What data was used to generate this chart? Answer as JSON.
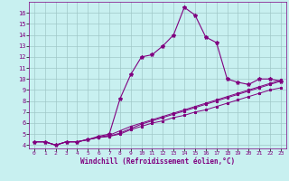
{
  "xlabel": "Windchill (Refroidissement éolien,°C)",
  "bg_color": "#c8f0f0",
  "line_color": "#800080",
  "grid_color": "#a0c8c8",
  "x_ticks": [
    0,
    1,
    2,
    3,
    4,
    5,
    6,
    7,
    8,
    9,
    10,
    11,
    12,
    13,
    14,
    15,
    16,
    17,
    18,
    19,
    20,
    21,
    22,
    23
  ],
  "y_ticks": [
    4,
    5,
    6,
    7,
    8,
    9,
    10,
    11,
    12,
    13,
    14,
    15,
    16
  ],
  "ylim": [
    3.7,
    17.0
  ],
  "xlim": [
    -0.5,
    23.5
  ],
  "series": [
    {
      "x": [
        0,
        1,
        2,
        3,
        4,
        5,
        6,
        7,
        8,
        9,
        10,
        11,
        12,
        13,
        14,
        15,
        16,
        17,
        18,
        19,
        20,
        21,
        22,
        23
      ],
      "y": [
        4.3,
        4.3,
        4.0,
        4.3,
        4.3,
        4.5,
        4.8,
        5.0,
        8.2,
        10.4,
        12.0,
        12.2,
        13.0,
        14.0,
        16.5,
        15.8,
        13.8,
        13.3,
        10.0,
        9.7,
        9.5,
        10.0,
        10.0,
        9.8
      ]
    },
    {
      "x": [
        0,
        1,
        2,
        3,
        4,
        5,
        6,
        7,
        8,
        9,
        10,
        11,
        12,
        13,
        14,
        15,
        16,
        17,
        18,
        19,
        20,
        21,
        22,
        23
      ],
      "y": [
        4.3,
        4.3,
        4.0,
        4.3,
        4.3,
        4.5,
        4.7,
        4.8,
        5.1,
        5.5,
        5.9,
        6.2,
        6.5,
        6.8,
        7.1,
        7.4,
        7.7,
        8.0,
        8.3,
        8.6,
        8.9,
        9.2,
        9.5,
        9.8
      ]
    },
    {
      "x": [
        0,
        1,
        2,
        3,
        4,
        5,
        6,
        7,
        8,
        9,
        10,
        11,
        12,
        13,
        14,
        15,
        16,
        17,
        18,
        19,
        20,
        21,
        22,
        23
      ],
      "y": [
        4.3,
        4.3,
        4.0,
        4.3,
        4.3,
        4.5,
        4.7,
        4.9,
        5.3,
        5.7,
        6.0,
        6.3,
        6.6,
        6.9,
        7.2,
        7.5,
        7.8,
        8.1,
        8.4,
        8.7,
        9.0,
        9.3,
        9.6,
        9.9
      ]
    },
    {
      "x": [
        0,
        1,
        2,
        3,
        4,
        5,
        6,
        7,
        8,
        9,
        10,
        11,
        12,
        13,
        14,
        15,
        16,
        17,
        18,
        19,
        20,
        21,
        22,
        23
      ],
      "y": [
        4.3,
        4.3,
        4.0,
        4.3,
        4.3,
        4.5,
        4.7,
        4.8,
        5.0,
        5.4,
        5.7,
        6.0,
        6.2,
        6.5,
        6.7,
        7.0,
        7.2,
        7.5,
        7.8,
        8.1,
        8.4,
        8.7,
        9.0,
        9.2
      ]
    }
  ]
}
